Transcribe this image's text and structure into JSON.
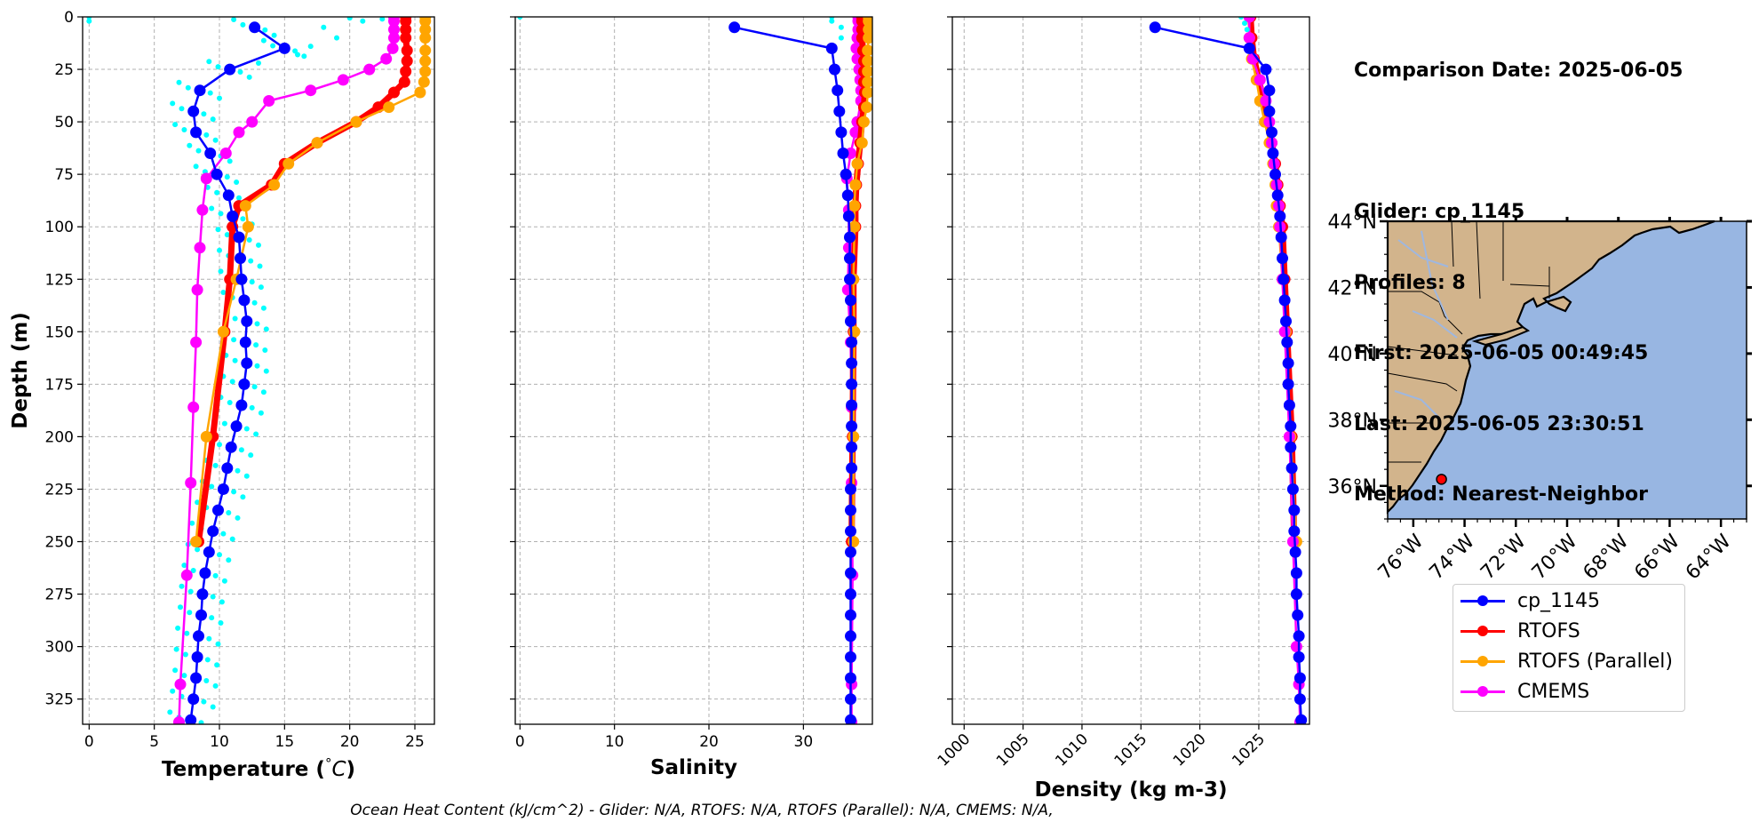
{
  "info": {
    "comparison": "Comparison Date: 2025-06-05",
    "glider": "Glider: cp_1145",
    "profiles": "Profiles: 8",
    "first": "First: 2025-06-05 00:49:45",
    "last": "Last: 2025-06-05 23:30:51",
    "method": "Method: Nearest-Neighbor"
  },
  "footer": "Ocean Heat Content (kJ/cm^2) - Glider: N/A,  RTOFS: N/A,  RTOFS (Parallel): N/A,  CMEMS: N/A,",
  "legend": [
    {
      "label": "cp_1145",
      "color": "#0000ff"
    },
    {
      "label": "RTOFS",
      "color": "#ff0000"
    },
    {
      "label": "RTOFS (Parallel)",
      "color": "#ffa500"
    },
    {
      "label": "CMEMS",
      "color": "#ff00ff"
    }
  ],
  "colors": {
    "glider": "#0000ff",
    "rtofs": "#ff0000",
    "rtofs_parallel": "#ffa500",
    "cmems": "#ff00ff",
    "glider_raw": "#00ffff",
    "land": "#d2b48c",
    "ocean": "#98b6e2",
    "rivers": "#9fb7df"
  },
  "chart_data": [
    {
      "type": "line",
      "xlabel": "Temperature (°C)",
      "ylabel": "Depth (m)",
      "xlim": [
        -0.5,
        26.5
      ],
      "ylim": [
        337,
        0
      ],
      "xticks": [
        0,
        5,
        10,
        15,
        20,
        25
      ],
      "yticks": [
        0,
        25,
        50,
        75,
        100,
        125,
        150,
        175,
        200,
        225,
        250,
        275,
        300,
        325
      ],
      "grid": true,
      "series": [
        {
          "key": "cmems",
          "depth": [
            0,
            2,
            6,
            10,
            15,
            20,
            25,
            30,
            35,
            40,
            50,
            55,
            65,
            77,
            92,
            110,
            130,
            155,
            186,
            222,
            266,
            318,
            336
          ],
          "values": [
            23.4,
            23.4,
            23.4,
            23.4,
            23.3,
            22.8,
            21.5,
            19.5,
            17.0,
            13.8,
            12.5,
            11.5,
            10.5,
            9.0,
            8.7,
            8.5,
            8.3,
            8.2,
            8.0,
            7.8,
            7.5,
            7.0,
            6.9
          ]
        },
        {
          "key": "rtofs",
          "depth": [
            0,
            2,
            6,
            10,
            16,
            21,
            26,
            31,
            36,
            43,
            50,
            60,
            70,
            80,
            90,
            100,
            125,
            150,
            200,
            250
          ],
          "values": [
            24.3,
            24.3,
            24.3,
            24.3,
            24.4,
            24.4,
            24.3,
            24.2,
            23.4,
            22.2,
            20.5,
            17.5,
            15.0,
            14.0,
            11.5,
            11.0,
            10.8,
            10.4,
            9.5,
            8.4
          ]
        },
        {
          "key": "rtofs_parallel",
          "depth": [
            0,
            2,
            6,
            10,
            16,
            21,
            26,
            31,
            36,
            43,
            50,
            60,
            70,
            80,
            90,
            100,
            125,
            150,
            200,
            250
          ],
          "values": [
            25.8,
            25.8,
            25.8,
            25.8,
            25.8,
            25.8,
            25.8,
            25.7,
            25.4,
            23.0,
            20.5,
            17.5,
            15.3,
            14.2,
            12.0,
            12.2,
            11.3,
            10.3,
            9.0,
            8.2
          ]
        },
        {
          "key": "glider",
          "depth": [
            5,
            15,
            25,
            35,
            45,
            55,
            65,
            75,
            85,
            95,
            105,
            115,
            125,
            135,
            145,
            155,
            165,
            175,
            185,
            195,
            205,
            215,
            225,
            235,
            245,
            255,
            265,
            275,
            285,
            295,
            305,
            315,
            325,
            335
          ],
          "values": [
            12.7,
            15.0,
            10.8,
            8.5,
            8.0,
            8.2,
            9.3,
            9.8,
            10.7,
            11.0,
            11.5,
            11.6,
            11.7,
            11.9,
            12.1,
            12.0,
            12.1,
            11.9,
            11.7,
            11.3,
            10.9,
            10.6,
            10.3,
            9.9,
            9.5,
            9.2,
            8.9,
            8.7,
            8.6,
            8.4,
            8.3,
            8.2,
            8.0,
            7.8
          ]
        }
      ]
    },
    {
      "type": "line",
      "xlabel": "Salinity",
      "xlim": [
        -0.5,
        37.3
      ],
      "ylim": [
        337,
        0
      ],
      "xticks": [
        0,
        10,
        20,
        30
      ],
      "yticks": [
        0,
        25,
        50,
        75,
        100,
        125,
        150,
        175,
        200,
        225,
        250,
        275,
        300,
        325
      ],
      "grid": true,
      "series": [
        {
          "key": "cmems",
          "depth": [
            0,
            2,
            6,
            10,
            15,
            20,
            25,
            30,
            35,
            40,
            50,
            55,
            65,
            77,
            92,
            110,
            130,
            155,
            186,
            222,
            266,
            318,
            336
          ],
          "values": [
            35.8,
            35.8,
            35.8,
            35.7,
            35.6,
            35.7,
            35.9,
            36.0,
            36.1,
            36.1,
            35.7,
            35.5,
            35.0,
            34.6,
            34.8,
            34.8,
            34.7,
            35.0,
            35.1,
            35.1,
            35.2,
            35.1,
            35.1
          ]
        },
        {
          "key": "rtofs",
          "depth": [
            0,
            2,
            6,
            10,
            16,
            21,
            26,
            31,
            36,
            43,
            50,
            60,
            70,
            80,
            90,
            100,
            125,
            150,
            200,
            250
          ],
          "values": [
            36.2,
            36.2,
            36.2,
            36.2,
            36.3,
            36.4,
            36.4,
            36.4,
            36.5,
            36.4,
            36.2,
            36.0,
            35.8,
            35.6,
            35.5,
            35.5,
            35.3,
            35.3,
            35.2,
            35.1
          ]
        },
        {
          "key": "rtofs_parallel",
          "depth": [
            0,
            2,
            6,
            10,
            16,
            21,
            26,
            31,
            36,
            43,
            50,
            60,
            70,
            80,
            90,
            100,
            125,
            150,
            200,
            250
          ],
          "values": [
            36.9,
            36.9,
            36.9,
            36.9,
            36.8,
            36.8,
            36.8,
            36.8,
            36.8,
            36.7,
            36.4,
            36.2,
            35.7,
            35.5,
            35.4,
            35.4,
            35.3,
            35.4,
            35.3,
            35.3
          ]
        },
        {
          "key": "glider",
          "depth": [
            5,
            15,
            25,
            35,
            45,
            55,
            65,
            75,
            85,
            95,
            105,
            115,
            125,
            135,
            145,
            155,
            165,
            175,
            185,
            195,
            205,
            215,
            225,
            235,
            245,
            255,
            265,
            275,
            285,
            295,
            305,
            315,
            325,
            335
          ],
          "values": [
            22.7,
            33.0,
            33.3,
            33.6,
            33.8,
            34.0,
            34.2,
            34.5,
            34.7,
            34.8,
            34.9,
            34.9,
            34.9,
            35.0,
            35.0,
            35.1,
            35.1,
            35.1,
            35.1,
            35.1,
            35.1,
            35.1,
            35.0,
            35.0,
            35.0,
            35.0,
            35.0,
            35.0,
            35.0,
            35.0,
            35.0,
            35.0,
            35.0,
            35.0
          ]
        }
      ]
    },
    {
      "type": "line",
      "xlabel": "Density (kg m-3)",
      "xlim": [
        999.0,
        1029.3
      ],
      "ylim": [
        337,
        0
      ],
      "xticks": [
        1000,
        1005,
        1010,
        1015,
        1020,
        1025
      ],
      "yticks": [
        0,
        25,
        50,
        75,
        100,
        125,
        150,
        175,
        200,
        225,
        250,
        275,
        300,
        325
      ],
      "grid": true,
      "series": [
        {
          "key": "rtofs",
          "depth": [
            0,
            10,
            20,
            30,
            40,
            50,
            60,
            70,
            80,
            90,
            100,
            125,
            150,
            200,
            250
          ],
          "values": [
            1024.3,
            1024.4,
            1024.6,
            1025.0,
            1025.4,
            1025.8,
            1026.1,
            1026.4,
            1026.6,
            1026.8,
            1027.0,
            1027.2,
            1027.4,
            1027.8,
            1028.0
          ]
        },
        {
          "key": "rtofs_parallel",
          "depth": [
            0,
            10,
            20,
            30,
            40,
            50,
            60,
            70,
            80,
            90,
            100,
            125,
            150,
            200,
            250
          ],
          "values": [
            1024.2,
            1024.2,
            1024.4,
            1024.8,
            1025.1,
            1025.5,
            1025.9,
            1026.2,
            1026.4,
            1026.5,
            1026.7,
            1027.0,
            1027.3,
            1027.7,
            1028.2
          ]
        },
        {
          "key": "cmems",
          "depth": [
            0,
            10,
            20,
            30,
            40,
            50,
            60,
            70,
            80,
            90,
            100,
            125,
            150,
            200,
            250,
            300,
            318,
            336
          ],
          "values": [
            1024.2,
            1024.2,
            1024.5,
            1025.1,
            1025.6,
            1025.9,
            1026.1,
            1026.3,
            1026.5,
            1026.7,
            1026.8,
            1027.0,
            1027.2,
            1027.6,
            1027.9,
            1028.2,
            1028.4,
            1028.5
          ]
        },
        {
          "key": "glider",
          "depth": [
            5,
            15,
            25,
            35,
            45,
            55,
            65,
            75,
            85,
            95,
            105,
            115,
            125,
            135,
            145,
            155,
            165,
            175,
            185,
            195,
            205,
            215,
            225,
            235,
            245,
            255,
            265,
            275,
            285,
            295,
            305,
            315,
            325,
            335
          ],
          "values": [
            1016.2,
            1024.2,
            1025.6,
            1025.9,
            1025.9,
            1026.1,
            1026.2,
            1026.4,
            1026.6,
            1026.8,
            1026.9,
            1027.0,
            1027.1,
            1027.2,
            1027.3,
            1027.4,
            1027.5,
            1027.5,
            1027.6,
            1027.7,
            1027.7,
            1027.8,
            1027.9,
            1028.0,
            1028.0,
            1028.1,
            1028.2,
            1028.2,
            1028.3,
            1028.4,
            1028.4,
            1028.5,
            1028.5,
            1028.6
          ]
        }
      ]
    },
    {
      "type": "map",
      "lon_range": [
        -77,
        -63
      ],
      "lat_range": [
        35,
        44
      ],
      "xticks": [
        "76°W",
        "74°W",
        "72°W",
        "70°W",
        "68°W",
        "66°W",
        "64°W"
      ],
      "yticks": [
        "44°N",
        "42°N",
        "40°N",
        "38°N",
        "36°N"
      ],
      "glider_position": {
        "lon": -74.9,
        "lat": 36.2
      }
    }
  ]
}
